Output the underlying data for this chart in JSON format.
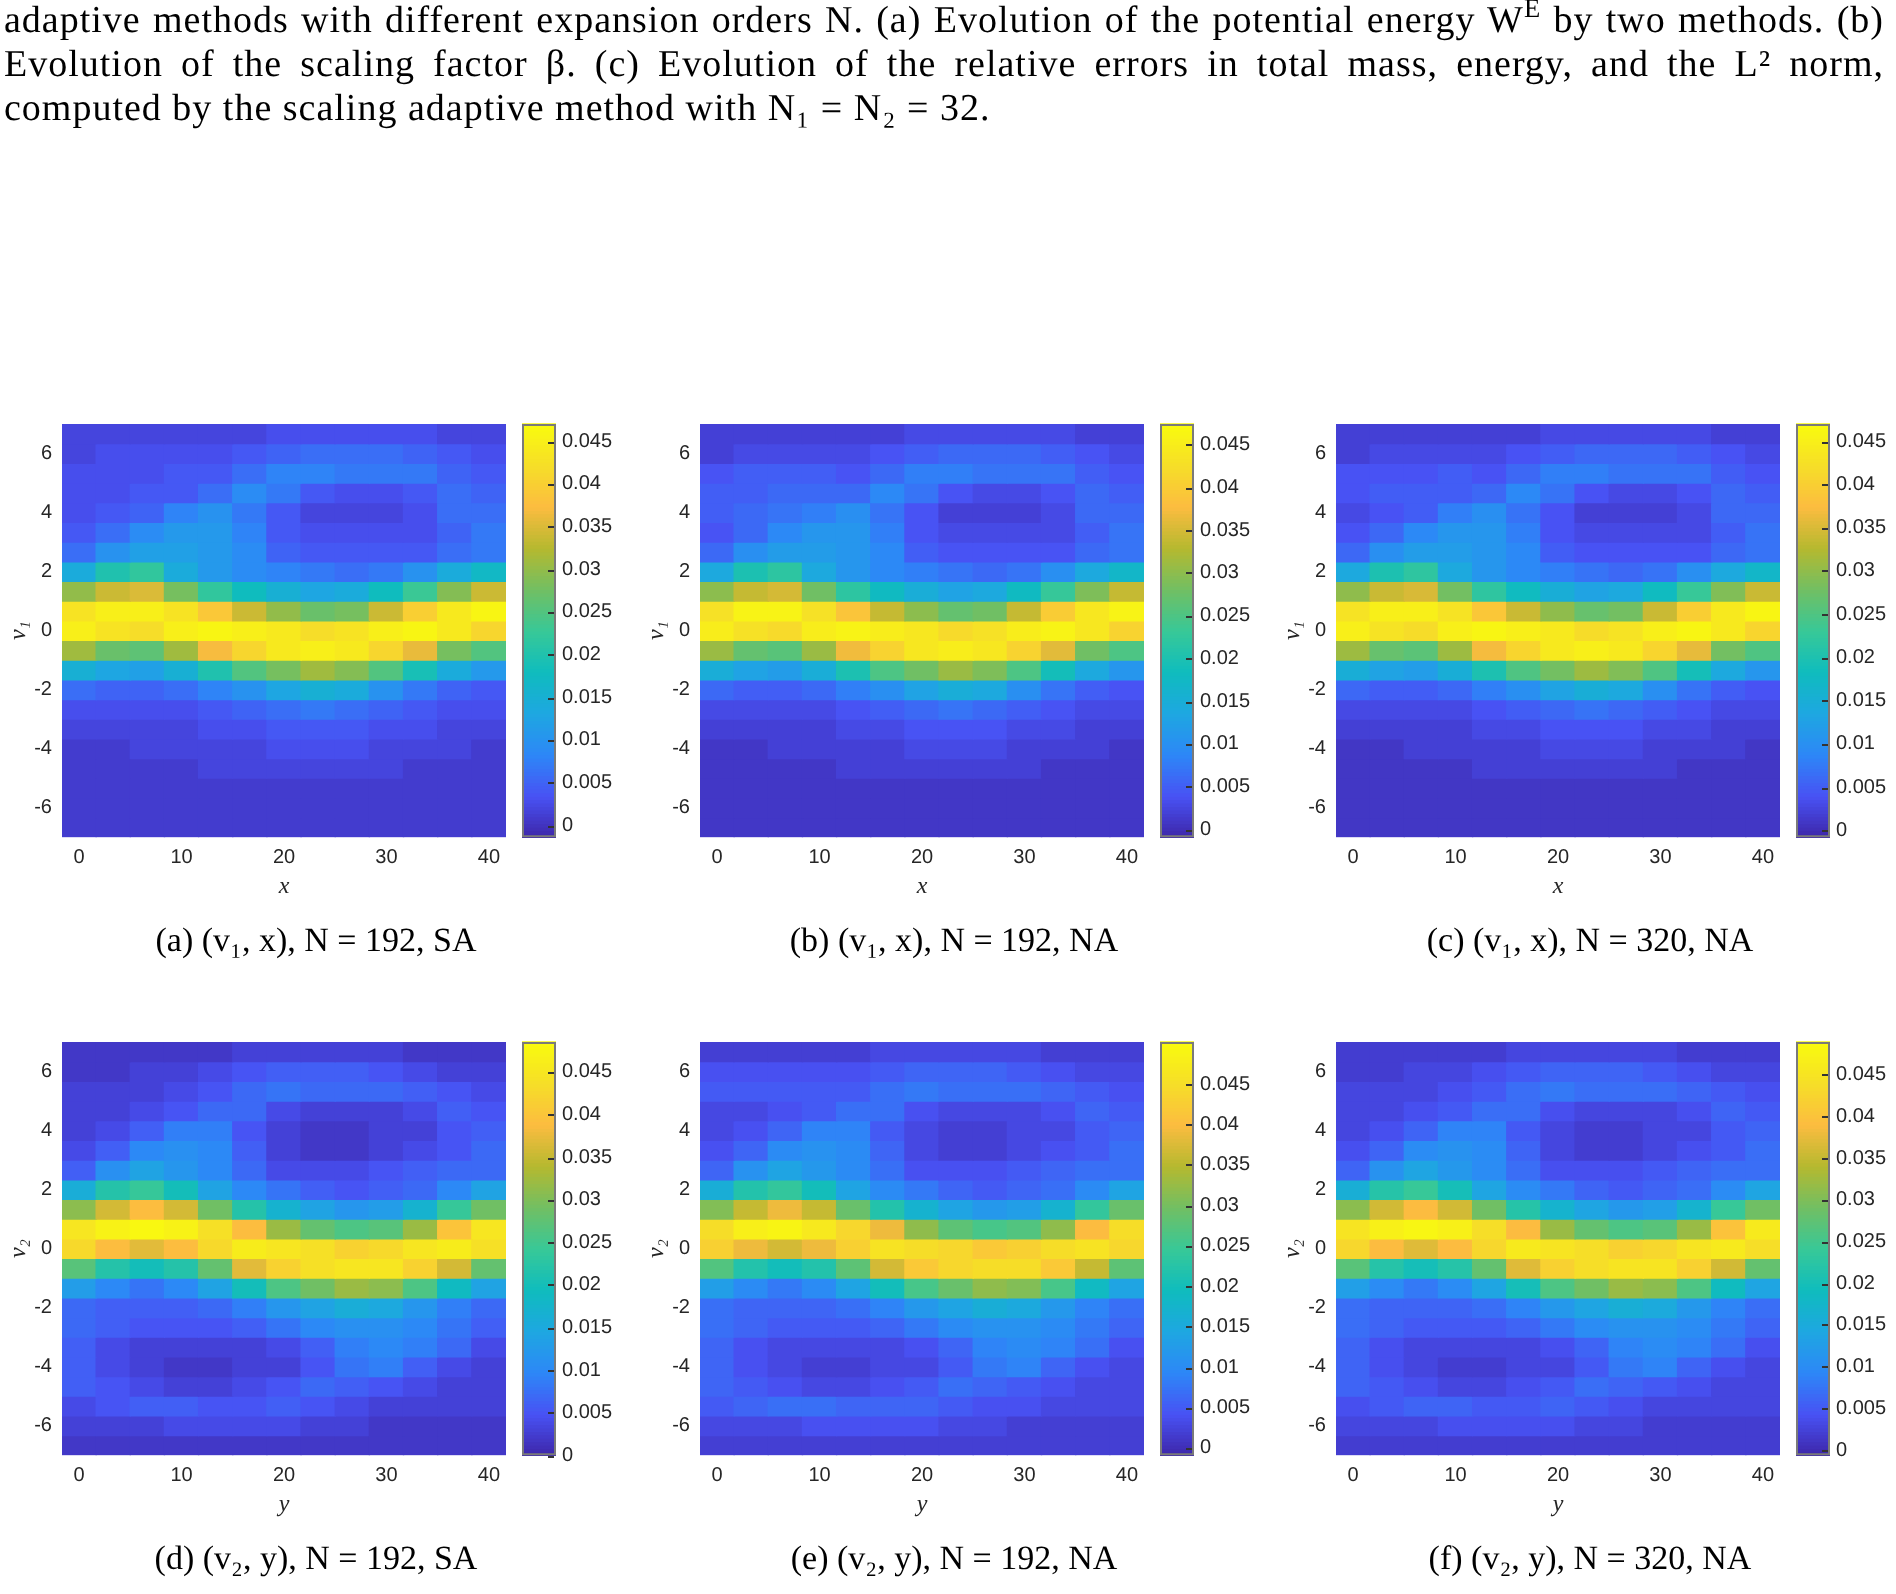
{
  "chart_data": [
    {
      "type": "other",
      "annotations": [
        "adaptive methods with different expansion orders N. (a) Evolution of the potential energy W$^{E}$ by two methods. (b) Evolution of the scaling factor β. (c) Evolution of the relative errors in total mass, energy, and the L² norm, computed by the scaling adaptive method with N₁ = N₂ = 32."
      ]
    },
    {
      "type": "heatmap",
      "title": "(a) (v₁, x), N = 192, SA",
      "xlabel": "x",
      "ylabel": "v₁",
      "categories": [
        "0",
        null,
        null,
        "10",
        null,
        null,
        "20",
        null,
        null,
        "30",
        null,
        null,
        "40"
      ],
      "y_categories": [
        null,
        "6",
        null,
        null,
        "4",
        null,
        null,
        "2",
        null,
        null,
        "0",
        null,
        null,
        "-2",
        null,
        null,
        "-4",
        null,
        null,
        "-6",
        null
      ],
      "clim": [
        -0.0014,
        0.047
      ],
      "cticks": [
        0,
        0.005,
        0.01,
        0.015,
        0.02,
        0.025,
        0.03,
        0.035,
        0.04,
        0.045
      ],
      "cells": [
        [
          0.002,
          0.002,
          0.002,
          0.002,
          0.002,
          0.002,
          0.003,
          0.003,
          0.003,
          0.003,
          0.003,
          0.002,
          0.002
        ],
        [
          0.002,
          0.003,
          0.003,
          0.003,
          0.003,
          0.004,
          0.005,
          0.006,
          0.006,
          0.006,
          0.005,
          0.004,
          0.003
        ],
        [
          0.003,
          0.003,
          0.003,
          0.004,
          0.004,
          0.006,
          0.008,
          0.008,
          0.007,
          0.007,
          0.007,
          0.005,
          0.004
        ],
        [
          0.003,
          0.003,
          0.004,
          0.004,
          0.006,
          0.009,
          0.007,
          0.004,
          0.003,
          0.003,
          0.004,
          0.006,
          0.005
        ],
        [
          0.003,
          0.004,
          0.005,
          0.008,
          0.01,
          0.007,
          0.004,
          0.002,
          0.002,
          0.002,
          0.003,
          0.006,
          0.006
        ],
        [
          0.004,
          0.006,
          0.009,
          0.011,
          0.011,
          0.008,
          0.004,
          0.003,
          0.003,
          0.003,
          0.003,
          0.005,
          0.007
        ],
        [
          0.006,
          0.01,
          0.012,
          0.012,
          0.011,
          0.009,
          0.005,
          0.004,
          0.004,
          0.004,
          0.004,
          0.006,
          0.007
        ],
        [
          0.014,
          0.02,
          0.022,
          0.014,
          0.011,
          0.009,
          0.008,
          0.007,
          0.006,
          0.007,
          0.01,
          0.014,
          0.017
        ],
        [
          0.03,
          0.034,
          0.035,
          0.028,
          0.022,
          0.018,
          0.015,
          0.013,
          0.014,
          0.018,
          0.023,
          0.029,
          0.034
        ],
        [
          0.043,
          0.045,
          0.045,
          0.043,
          0.039,
          0.034,
          0.03,
          0.027,
          0.028,
          0.034,
          0.04,
          0.044,
          0.046
        ],
        [
          0.045,
          0.043,
          0.042,
          0.045,
          0.046,
          0.045,
          0.044,
          0.042,
          0.043,
          0.045,
          0.046,
          0.044,
          0.041
        ],
        [
          0.031,
          0.027,
          0.026,
          0.031,
          0.037,
          0.041,
          0.044,
          0.045,
          0.044,
          0.041,
          0.036,
          0.028,
          0.025
        ],
        [
          0.015,
          0.013,
          0.012,
          0.015,
          0.02,
          0.025,
          0.028,
          0.031,
          0.029,
          0.025,
          0.019,
          0.014,
          0.011
        ],
        [
          0.006,
          0.005,
          0.005,
          0.006,
          0.008,
          0.01,
          0.013,
          0.015,
          0.014,
          0.01,
          0.007,
          0.005,
          0.004
        ],
        [
          0.003,
          0.003,
          0.003,
          0.003,
          0.004,
          0.005,
          0.006,
          0.007,
          0.006,
          0.005,
          0.004,
          0.003,
          0.003
        ],
        [
          0.002,
          0.002,
          0.002,
          0.002,
          0.003,
          0.003,
          0.004,
          0.004,
          0.004,
          0.003,
          0.003,
          0.002,
          0.002
        ],
        [
          0.001,
          0.001,
          0.002,
          0.002,
          0.002,
          0.002,
          0.003,
          0.003,
          0.003,
          0.002,
          0.002,
          0.002,
          0.001
        ],
        [
          0.001,
          0.001,
          0.001,
          0.001,
          0.002,
          0.002,
          0.002,
          0.002,
          0.002,
          0.002,
          0.001,
          0.001,
          0.001
        ],
        [
          0.001,
          0.001,
          0.001,
          0.001,
          0.001,
          0.001,
          0.001,
          0.001,
          0.001,
          0.001,
          0.001,
          0.001,
          0.001
        ],
        [
          0.001,
          0.001,
          0.001,
          0.001,
          0.001,
          0.001,
          0.001,
          0.001,
          0.001,
          0.001,
          0.001,
          0.001,
          0.001
        ],
        [
          0.001,
          0.001,
          0.001,
          0.001,
          0.001,
          0.001,
          0.001,
          0.001,
          0.001,
          0.001,
          0.001,
          0.001,
          0.001
        ]
      ]
    },
    {
      "type": "heatmap",
      "title": "(b) (v₁, x), N = 192, NA",
      "xlabel": "x",
      "ylabel": "v₁",
      "categories": [
        "0",
        null,
        null,
        "10",
        null,
        null,
        "20",
        null,
        null,
        "30",
        null,
        null,
        "40"
      ],
      "y_categories": [
        null,
        "6",
        null,
        null,
        "4",
        null,
        null,
        "2",
        null,
        null,
        "0",
        null,
        null,
        "-2",
        null,
        null,
        "-4",
        null,
        null,
        "-6",
        null
      ],
      "clim": [
        -0.0009,
        0.0474
      ],
      "cticks": [
        0,
        0.005,
        0.01,
        0.015,
        0.02,
        0.025,
        0.03,
        0.035,
        0.04,
        0.045
      ],
      "cells": [
        [
          0.002,
          0.002,
          0.002,
          0.002,
          0.002,
          0.002,
          0.003,
          0.003,
          0.003,
          0.003,
          0.003,
          0.002,
          0.002
        ],
        [
          0.002,
          0.003,
          0.003,
          0.003,
          0.003,
          0.004,
          0.005,
          0.006,
          0.006,
          0.006,
          0.005,
          0.004,
          0.003
        ],
        [
          0.004,
          0.005,
          0.005,
          0.005,
          0.004,
          0.006,
          0.008,
          0.008,
          0.007,
          0.007,
          0.007,
          0.005,
          0.004
        ],
        [
          0.005,
          0.005,
          0.006,
          0.006,
          0.006,
          0.009,
          0.007,
          0.004,
          0.003,
          0.003,
          0.004,
          0.006,
          0.005
        ],
        [
          0.005,
          0.006,
          0.007,
          0.008,
          0.01,
          0.007,
          0.004,
          0.002,
          0.002,
          0.002,
          0.003,
          0.006,
          0.006
        ],
        [
          0.004,
          0.006,
          0.009,
          0.011,
          0.011,
          0.008,
          0.004,
          0.003,
          0.003,
          0.003,
          0.003,
          0.005,
          0.007
        ],
        [
          0.006,
          0.01,
          0.012,
          0.012,
          0.011,
          0.009,
          0.005,
          0.004,
          0.004,
          0.004,
          0.004,
          0.006,
          0.007
        ],
        [
          0.014,
          0.02,
          0.022,
          0.014,
          0.011,
          0.009,
          0.008,
          0.007,
          0.006,
          0.007,
          0.01,
          0.014,
          0.017
        ],
        [
          0.03,
          0.034,
          0.035,
          0.028,
          0.022,
          0.018,
          0.015,
          0.013,
          0.014,
          0.018,
          0.023,
          0.029,
          0.034
        ],
        [
          0.043,
          0.046,
          0.046,
          0.043,
          0.039,
          0.034,
          0.03,
          0.027,
          0.028,
          0.034,
          0.04,
          0.044,
          0.046
        ],
        [
          0.045,
          0.043,
          0.042,
          0.045,
          0.046,
          0.045,
          0.044,
          0.042,
          0.043,
          0.045,
          0.046,
          0.044,
          0.041
        ],
        [
          0.031,
          0.027,
          0.026,
          0.031,
          0.037,
          0.041,
          0.044,
          0.045,
          0.044,
          0.041,
          0.036,
          0.028,
          0.025
        ],
        [
          0.015,
          0.013,
          0.012,
          0.015,
          0.02,
          0.025,
          0.028,
          0.031,
          0.029,
          0.025,
          0.019,
          0.014,
          0.011
        ],
        [
          0.006,
          0.005,
          0.005,
          0.006,
          0.008,
          0.01,
          0.013,
          0.015,
          0.014,
          0.01,
          0.007,
          0.005,
          0.004
        ],
        [
          0.003,
          0.003,
          0.003,
          0.003,
          0.004,
          0.005,
          0.006,
          0.007,
          0.006,
          0.005,
          0.004,
          0.003,
          0.003
        ],
        [
          0.002,
          0.002,
          0.002,
          0.002,
          0.003,
          0.003,
          0.004,
          0.004,
          0.004,
          0.003,
          0.003,
          0.002,
          0.002
        ],
        [
          0.001,
          0.001,
          0.002,
          0.002,
          0.002,
          0.002,
          0.003,
          0.003,
          0.003,
          0.002,
          0.002,
          0.002,
          0.001
        ],
        [
          0.001,
          0.001,
          0.001,
          0.001,
          0.002,
          0.002,
          0.002,
          0.002,
          0.002,
          0.002,
          0.001,
          0.001,
          0.001
        ],
        [
          0.001,
          0.001,
          0.001,
          0.001,
          0.001,
          0.001,
          0.001,
          0.001,
          0.001,
          0.001,
          0.001,
          0.001,
          0.001
        ],
        [
          0.001,
          0.001,
          0.001,
          0.001,
          0.001,
          0.001,
          0.001,
          0.001,
          0.001,
          0.001,
          0.001,
          0.001,
          0.001
        ],
        [
          0.001,
          0.001,
          0.001,
          0.001,
          0.001,
          0.001,
          0.001,
          0.001,
          0.001,
          0.001,
          0.001,
          0.001,
          0.001
        ]
      ]
    },
    {
      "type": "heatmap",
      "title": "(c) (v₁, x), N = 320, NA",
      "xlabel": "x",
      "ylabel": "v₁",
      "categories": [
        "0",
        null,
        null,
        "10",
        null,
        null,
        "20",
        null,
        null,
        "30",
        null,
        null,
        "40"
      ],
      "y_categories": [
        null,
        "6",
        null,
        null,
        "4",
        null,
        null,
        "2",
        null,
        null,
        "0",
        null,
        null,
        "-2",
        null,
        null,
        "-4",
        null,
        null,
        "-6",
        null
      ],
      "clim": [
        -0.0008,
        0.047
      ],
      "cticks": [
        0,
        0.005,
        0.01,
        0.015,
        0.02,
        0.025,
        0.03,
        0.035,
        0.04,
        0.045
      ],
      "cells": [
        [
          0.002,
          0.002,
          0.002,
          0.002,
          0.002,
          0.002,
          0.003,
          0.003,
          0.003,
          0.003,
          0.003,
          0.002,
          0.002
        ],
        [
          0.002,
          0.003,
          0.003,
          0.003,
          0.003,
          0.004,
          0.005,
          0.006,
          0.006,
          0.006,
          0.005,
          0.004,
          0.003
        ],
        [
          0.004,
          0.004,
          0.004,
          0.005,
          0.004,
          0.006,
          0.008,
          0.008,
          0.007,
          0.007,
          0.007,
          0.005,
          0.004
        ],
        [
          0.004,
          0.005,
          0.005,
          0.005,
          0.006,
          0.009,
          0.007,
          0.004,
          0.003,
          0.003,
          0.004,
          0.006,
          0.005
        ],
        [
          0.003,
          0.004,
          0.005,
          0.008,
          0.01,
          0.007,
          0.004,
          0.002,
          0.002,
          0.002,
          0.003,
          0.006,
          0.006
        ],
        [
          0.004,
          0.006,
          0.009,
          0.011,
          0.011,
          0.008,
          0.004,
          0.003,
          0.003,
          0.003,
          0.003,
          0.005,
          0.007
        ],
        [
          0.006,
          0.01,
          0.012,
          0.012,
          0.011,
          0.009,
          0.005,
          0.004,
          0.004,
          0.004,
          0.004,
          0.006,
          0.007
        ],
        [
          0.014,
          0.02,
          0.022,
          0.014,
          0.011,
          0.009,
          0.008,
          0.007,
          0.006,
          0.007,
          0.01,
          0.014,
          0.017
        ],
        [
          0.03,
          0.034,
          0.035,
          0.028,
          0.022,
          0.018,
          0.015,
          0.013,
          0.014,
          0.018,
          0.023,
          0.029,
          0.034
        ],
        [
          0.043,
          0.045,
          0.045,
          0.043,
          0.039,
          0.034,
          0.03,
          0.027,
          0.028,
          0.034,
          0.04,
          0.044,
          0.046
        ],
        [
          0.045,
          0.043,
          0.042,
          0.045,
          0.046,
          0.045,
          0.044,
          0.042,
          0.043,
          0.045,
          0.046,
          0.044,
          0.041
        ],
        [
          0.031,
          0.027,
          0.026,
          0.031,
          0.037,
          0.041,
          0.044,
          0.045,
          0.044,
          0.041,
          0.036,
          0.028,
          0.025
        ],
        [
          0.015,
          0.013,
          0.012,
          0.015,
          0.02,
          0.025,
          0.028,
          0.031,
          0.029,
          0.025,
          0.019,
          0.014,
          0.011
        ],
        [
          0.006,
          0.005,
          0.005,
          0.006,
          0.008,
          0.01,
          0.013,
          0.015,
          0.014,
          0.01,
          0.007,
          0.005,
          0.004
        ],
        [
          0.003,
          0.003,
          0.003,
          0.003,
          0.004,
          0.005,
          0.006,
          0.007,
          0.006,
          0.005,
          0.004,
          0.003,
          0.003
        ],
        [
          0.002,
          0.002,
          0.002,
          0.002,
          0.003,
          0.003,
          0.004,
          0.004,
          0.004,
          0.003,
          0.003,
          0.002,
          0.002
        ],
        [
          0.001,
          0.001,
          0.002,
          0.002,
          0.002,
          0.002,
          0.003,
          0.003,
          0.003,
          0.002,
          0.002,
          0.002,
          0.001
        ],
        [
          0.001,
          0.001,
          0.001,
          0.001,
          0.002,
          0.002,
          0.002,
          0.002,
          0.002,
          0.002,
          0.001,
          0.001,
          0.001
        ],
        [
          0.001,
          0.001,
          0.001,
          0.001,
          0.001,
          0.001,
          0.001,
          0.001,
          0.001,
          0.001,
          0.001,
          0.001,
          0.001
        ],
        [
          0.001,
          0.001,
          0.001,
          0.001,
          0.001,
          0.001,
          0.001,
          0.001,
          0.001,
          0.001,
          0.001,
          0.001,
          0.001
        ],
        [
          0.001,
          0.001,
          0.001,
          0.001,
          0.001,
          0.001,
          0.001,
          0.001,
          0.001,
          0.001,
          0.001,
          0.001,
          0.001
        ]
      ]
    },
    {
      "type": "heatmap",
      "title": "(d) (v₂, y), N = 192, SA",
      "xlabel": "y",
      "ylabel": "v₂",
      "categories": [
        "0",
        null,
        null,
        "10",
        null,
        null,
        "20",
        null,
        null,
        "30",
        null,
        null,
        "40"
      ],
      "y_categories": [
        null,
        "6",
        null,
        null,
        "4",
        null,
        null,
        "2",
        null,
        null,
        "0",
        null,
        null,
        "-2",
        null,
        null,
        "-4",
        null,
        null,
        "-6",
        null
      ],
      "clim": [
        0,
        0.0485
      ],
      "cticks": [
        0,
        0.005,
        0.01,
        0.015,
        0.02,
        0.025,
        0.03,
        0.035,
        0.04,
        0.045
      ],
      "cells": [
        [
          0.002,
          0.002,
          0.002,
          0.002,
          0.002,
          0.003,
          0.003,
          0.003,
          0.003,
          0.003,
          0.002,
          0.002,
          0.002
        ],
        [
          0.002,
          0.002,
          0.003,
          0.003,
          0.004,
          0.005,
          0.006,
          0.006,
          0.006,
          0.005,
          0.004,
          0.003,
          0.003
        ],
        [
          0.003,
          0.003,
          0.003,
          0.004,
          0.005,
          0.007,
          0.008,
          0.007,
          0.007,
          0.007,
          0.006,
          0.005,
          0.004
        ],
        [
          0.003,
          0.003,
          0.004,
          0.005,
          0.007,
          0.007,
          0.004,
          0.003,
          0.003,
          0.003,
          0.004,
          0.006,
          0.005
        ],
        [
          0.003,
          0.004,
          0.006,
          0.009,
          0.009,
          0.005,
          0.003,
          0.002,
          0.002,
          0.003,
          0.003,
          0.005,
          0.006
        ],
        [
          0.004,
          0.006,
          0.01,
          0.011,
          0.01,
          0.006,
          0.003,
          0.002,
          0.002,
          0.003,
          0.004,
          0.005,
          0.007
        ],
        [
          0.006,
          0.011,
          0.014,
          0.012,
          0.01,
          0.007,
          0.004,
          0.004,
          0.004,
          0.005,
          0.006,
          0.007,
          0.007
        ],
        [
          0.016,
          0.022,
          0.024,
          0.02,
          0.014,
          0.01,
          0.008,
          0.006,
          0.005,
          0.006,
          0.007,
          0.01,
          0.014
        ],
        [
          0.031,
          0.036,
          0.039,
          0.036,
          0.029,
          0.022,
          0.017,
          0.014,
          0.012,
          0.013,
          0.017,
          0.024,
          0.029
        ],
        [
          0.045,
          0.047,
          0.048,
          0.047,
          0.044,
          0.039,
          0.032,
          0.028,
          0.026,
          0.027,
          0.032,
          0.04,
          0.045
        ],
        [
          0.043,
          0.039,
          0.037,
          0.039,
          0.043,
          0.046,
          0.045,
          0.044,
          0.042,
          0.043,
          0.045,
          0.046,
          0.044
        ],
        [
          0.027,
          0.022,
          0.02,
          0.022,
          0.028,
          0.037,
          0.042,
          0.044,
          0.045,
          0.045,
          0.042,
          0.036,
          0.028
        ],
        [
          0.013,
          0.01,
          0.008,
          0.01,
          0.014,
          0.02,
          0.026,
          0.029,
          0.032,
          0.031,
          0.026,
          0.019,
          0.014
        ],
        [
          0.007,
          0.006,
          0.006,
          0.006,
          0.007,
          0.009,
          0.012,
          0.014,
          0.016,
          0.015,
          0.012,
          0.009,
          0.007
        ],
        [
          0.007,
          0.006,
          0.005,
          0.005,
          0.005,
          0.006,
          0.008,
          0.01,
          0.011,
          0.011,
          0.01,
          0.008,
          0.006
        ],
        [
          0.006,
          0.004,
          0.003,
          0.003,
          0.003,
          0.003,
          0.004,
          0.006,
          0.009,
          0.01,
          0.009,
          0.007,
          0.004
        ],
        [
          0.006,
          0.004,
          0.003,
          0.002,
          0.002,
          0.003,
          0.003,
          0.005,
          0.008,
          0.009,
          0.006,
          0.004,
          0.003
        ],
        [
          0.006,
          0.005,
          0.004,
          0.003,
          0.003,
          0.004,
          0.005,
          0.007,
          0.006,
          0.005,
          0.004,
          0.003,
          0.003
        ],
        [
          0.004,
          0.005,
          0.006,
          0.006,
          0.005,
          0.005,
          0.006,
          0.005,
          0.004,
          0.003,
          0.003,
          0.003,
          0.003
        ],
        [
          0.003,
          0.003,
          0.003,
          0.004,
          0.004,
          0.004,
          0.004,
          0.003,
          0.003,
          0.002,
          0.002,
          0.002,
          0.002
        ],
        [
          0.002,
          0.002,
          0.002,
          0.002,
          0.002,
          0.002,
          0.002,
          0.002,
          0.002,
          0.002,
          0.002,
          0.002,
          0.002
        ]
      ]
    },
    {
      "type": "heatmap",
      "title": "(e) (v₂, y), N = 192, NA",
      "xlabel": "y",
      "ylabel": "v₂",
      "categories": [
        "0",
        null,
        null,
        "10",
        null,
        null,
        "20",
        null,
        null,
        "30",
        null,
        null,
        "40"
      ],
      "y_categories": [
        null,
        "6",
        null,
        null,
        "4",
        null,
        null,
        "2",
        null,
        null,
        "0",
        null,
        null,
        "-2",
        null,
        null,
        "-4",
        null,
        null,
        "-6",
        null
      ],
      "clim": [
        -0.0009,
        0.0502
      ],
      "cticks": [
        0,
        0.005,
        0.01,
        0.015,
        0.02,
        0.025,
        0.03,
        0.035,
        0.04,
        0.045
      ],
      "cells": [
        [
          0.002,
          0.002,
          0.002,
          0.002,
          0.002,
          0.003,
          0.003,
          0.003,
          0.003,
          0.003,
          0.002,
          0.002,
          0.002
        ],
        [
          0.004,
          0.004,
          0.004,
          0.004,
          0.004,
          0.005,
          0.006,
          0.006,
          0.006,
          0.005,
          0.004,
          0.003,
          0.003
        ],
        [
          0.005,
          0.005,
          0.005,
          0.005,
          0.005,
          0.007,
          0.008,
          0.007,
          0.007,
          0.007,
          0.006,
          0.005,
          0.004
        ],
        [
          0.003,
          0.003,
          0.004,
          0.005,
          0.007,
          0.007,
          0.004,
          0.003,
          0.003,
          0.003,
          0.004,
          0.006,
          0.005
        ],
        [
          0.003,
          0.004,
          0.006,
          0.009,
          0.009,
          0.005,
          0.003,
          0.002,
          0.002,
          0.003,
          0.003,
          0.005,
          0.006
        ],
        [
          0.004,
          0.006,
          0.01,
          0.011,
          0.01,
          0.006,
          0.003,
          0.002,
          0.002,
          0.003,
          0.004,
          0.005,
          0.007
        ],
        [
          0.006,
          0.011,
          0.014,
          0.012,
          0.01,
          0.007,
          0.004,
          0.004,
          0.004,
          0.005,
          0.006,
          0.007,
          0.007
        ],
        [
          0.016,
          0.022,
          0.024,
          0.02,
          0.014,
          0.01,
          0.008,
          0.006,
          0.005,
          0.006,
          0.007,
          0.01,
          0.014
        ],
        [
          0.031,
          0.036,
          0.039,
          0.036,
          0.029,
          0.022,
          0.017,
          0.014,
          0.012,
          0.013,
          0.017,
          0.024,
          0.029
        ],
        [
          0.045,
          0.048,
          0.049,
          0.047,
          0.044,
          0.039,
          0.032,
          0.028,
          0.026,
          0.027,
          0.032,
          0.04,
          0.045
        ],
        [
          0.043,
          0.039,
          0.037,
          0.039,
          0.043,
          0.046,
          0.045,
          0.044,
          0.042,
          0.043,
          0.045,
          0.046,
          0.044
        ],
        [
          0.027,
          0.022,
          0.02,
          0.022,
          0.028,
          0.037,
          0.042,
          0.044,
          0.045,
          0.045,
          0.042,
          0.036,
          0.028
        ],
        [
          0.013,
          0.01,
          0.008,
          0.01,
          0.014,
          0.02,
          0.026,
          0.029,
          0.032,
          0.031,
          0.026,
          0.019,
          0.014
        ],
        [
          0.007,
          0.006,
          0.006,
          0.006,
          0.007,
          0.009,
          0.012,
          0.014,
          0.016,
          0.015,
          0.012,
          0.009,
          0.007
        ],
        [
          0.007,
          0.006,
          0.005,
          0.005,
          0.005,
          0.006,
          0.008,
          0.01,
          0.011,
          0.011,
          0.01,
          0.008,
          0.006
        ],
        [
          0.006,
          0.004,
          0.003,
          0.003,
          0.003,
          0.003,
          0.004,
          0.006,
          0.009,
          0.01,
          0.009,
          0.007,
          0.004
        ],
        [
          0.006,
          0.004,
          0.003,
          0.002,
          0.002,
          0.003,
          0.003,
          0.005,
          0.008,
          0.009,
          0.006,
          0.004,
          0.003
        ],
        [
          0.006,
          0.005,
          0.004,
          0.003,
          0.003,
          0.004,
          0.005,
          0.007,
          0.006,
          0.005,
          0.004,
          0.003,
          0.003
        ],
        [
          0.005,
          0.006,
          0.007,
          0.007,
          0.006,
          0.006,
          0.006,
          0.005,
          0.004,
          0.004,
          0.003,
          0.003,
          0.003
        ],
        [
          0.003,
          0.003,
          0.003,
          0.004,
          0.004,
          0.004,
          0.004,
          0.003,
          0.003,
          0.002,
          0.002,
          0.002,
          0.002
        ],
        [
          0.002,
          0.002,
          0.002,
          0.002,
          0.002,
          0.002,
          0.002,
          0.002,
          0.002,
          0.002,
          0.002,
          0.002,
          0.002
        ]
      ]
    },
    {
      "type": "heatmap",
      "title": "(f) (v₂, y), N = 320, NA",
      "xlabel": "y",
      "ylabel": "v₂",
      "categories": [
        "0",
        null,
        null,
        "10",
        null,
        null,
        "20",
        null,
        null,
        "30",
        null,
        null,
        "40"
      ],
      "y_categories": [
        null,
        "6",
        null,
        null,
        "4",
        null,
        null,
        "2",
        null,
        null,
        "0",
        null,
        null,
        "-2",
        null,
        null,
        "-4",
        null,
        null,
        "-6",
        null
      ],
      "clim": [
        -0.0006,
        0.0489
      ],
      "cticks": [
        0,
        0.005,
        0.01,
        0.015,
        0.02,
        0.025,
        0.03,
        0.035,
        0.04,
        0.045
      ],
      "cells": [
        [
          0.002,
          0.002,
          0.002,
          0.002,
          0.002,
          0.003,
          0.003,
          0.003,
          0.003,
          0.003,
          0.002,
          0.002,
          0.002
        ],
        [
          0.002,
          0.002,
          0.003,
          0.003,
          0.004,
          0.005,
          0.006,
          0.006,
          0.006,
          0.005,
          0.004,
          0.003,
          0.003
        ],
        [
          0.003,
          0.003,
          0.003,
          0.004,
          0.005,
          0.007,
          0.008,
          0.007,
          0.007,
          0.007,
          0.006,
          0.005,
          0.004
        ],
        [
          0.003,
          0.003,
          0.004,
          0.005,
          0.007,
          0.007,
          0.004,
          0.003,
          0.003,
          0.003,
          0.004,
          0.006,
          0.005
        ],
        [
          0.003,
          0.004,
          0.006,
          0.009,
          0.009,
          0.005,
          0.003,
          0.002,
          0.002,
          0.003,
          0.003,
          0.005,
          0.006
        ],
        [
          0.004,
          0.006,
          0.01,
          0.011,
          0.01,
          0.006,
          0.003,
          0.002,
          0.002,
          0.003,
          0.004,
          0.005,
          0.007
        ],
        [
          0.006,
          0.011,
          0.014,
          0.012,
          0.01,
          0.007,
          0.004,
          0.004,
          0.004,
          0.005,
          0.006,
          0.007,
          0.007
        ],
        [
          0.016,
          0.022,
          0.024,
          0.02,
          0.014,
          0.01,
          0.008,
          0.006,
          0.005,
          0.006,
          0.007,
          0.01,
          0.014
        ],
        [
          0.031,
          0.036,
          0.039,
          0.036,
          0.029,
          0.022,
          0.017,
          0.014,
          0.012,
          0.013,
          0.017,
          0.024,
          0.029
        ],
        [
          0.045,
          0.047,
          0.048,
          0.047,
          0.044,
          0.039,
          0.032,
          0.028,
          0.026,
          0.027,
          0.032,
          0.04,
          0.046
        ],
        [
          0.043,
          0.039,
          0.037,
          0.039,
          0.043,
          0.046,
          0.045,
          0.044,
          0.042,
          0.043,
          0.045,
          0.046,
          0.044
        ],
        [
          0.027,
          0.022,
          0.02,
          0.022,
          0.028,
          0.037,
          0.042,
          0.044,
          0.045,
          0.045,
          0.042,
          0.036,
          0.028
        ],
        [
          0.013,
          0.01,
          0.008,
          0.01,
          0.014,
          0.02,
          0.026,
          0.029,
          0.032,
          0.031,
          0.026,
          0.019,
          0.014
        ],
        [
          0.007,
          0.006,
          0.006,
          0.006,
          0.007,
          0.009,
          0.012,
          0.014,
          0.016,
          0.015,
          0.012,
          0.009,
          0.007
        ],
        [
          0.007,
          0.006,
          0.005,
          0.005,
          0.005,
          0.006,
          0.008,
          0.01,
          0.011,
          0.011,
          0.01,
          0.008,
          0.006
        ],
        [
          0.006,
          0.004,
          0.003,
          0.003,
          0.003,
          0.003,
          0.004,
          0.006,
          0.009,
          0.01,
          0.009,
          0.007,
          0.004
        ],
        [
          0.006,
          0.004,
          0.003,
          0.002,
          0.002,
          0.003,
          0.003,
          0.005,
          0.008,
          0.009,
          0.006,
          0.004,
          0.003
        ],
        [
          0.006,
          0.005,
          0.004,
          0.003,
          0.003,
          0.004,
          0.005,
          0.007,
          0.006,
          0.005,
          0.004,
          0.003,
          0.003
        ],
        [
          0.004,
          0.005,
          0.006,
          0.006,
          0.005,
          0.005,
          0.006,
          0.005,
          0.004,
          0.003,
          0.003,
          0.003,
          0.003
        ],
        [
          0.003,
          0.003,
          0.003,
          0.004,
          0.004,
          0.004,
          0.004,
          0.003,
          0.003,
          0.002,
          0.002,
          0.002,
          0.002
        ],
        [
          0.002,
          0.002,
          0.002,
          0.002,
          0.002,
          0.002,
          0.002,
          0.002,
          0.002,
          0.002,
          0.002,
          0.002,
          0.002
        ]
      ]
    }
  ]
}
